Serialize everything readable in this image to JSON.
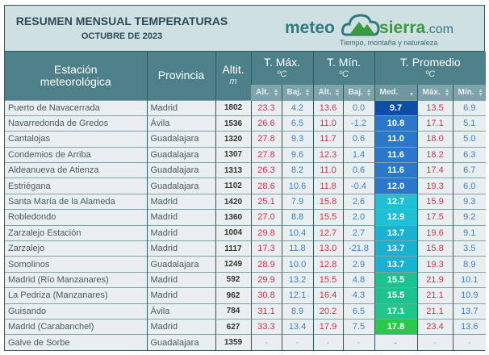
{
  "header": {
    "title": "RESUMEN MENSUAL TEMPERATURAS",
    "subtitle": "OCTUBRE DE 2023"
  },
  "logo": {
    "left": "meteo",
    "right": "sierra",
    "tld": ".com",
    "tagline": "Tiempo, montaña y naturaleza"
  },
  "columns": {
    "station": "Estación meteorológica",
    "province": "Provincia",
    "altitude": "Altit.",
    "altitude_unit": "m",
    "tmax": "T. Máx.",
    "tmin": "T. Mín.",
    "tavg": "T. Promedio",
    "unit": "ºC",
    "sub": [
      "Alt.",
      "Baj.",
      "Alt.",
      "Baj.",
      "Med.",
      "Máx.",
      "Mín."
    ],
    "sorted_column": "Med."
  },
  "colors": {
    "header": "#4e8089",
    "max_text": "#d5304a",
    "min_text": "#3b7fd1"
  },
  "rows": [
    [
      "Puerto de Navacerrada",
      "Madrid",
      "1802",
      "23.3",
      "4.2",
      "13.6",
      "0.0",
      "9.7",
      "13.5",
      "6.9",
      "#0d4fa6"
    ],
    [
      "Navarredonda de Gredos",
      "Ávila",
      "1536",
      "26.6",
      "6.5",
      "11.0",
      "-1.2",
      "10.8",
      "17.1",
      "5.1",
      "#2a78cc"
    ],
    [
      "Cantalojas",
      "Guadalajara",
      "1320",
      "27.8",
      "9.3",
      "11.7",
      "0.6",
      "11.0",
      "18.0",
      "5.0",
      "#2a78cc"
    ],
    [
      "Condemios de Arriba",
      "Guadalajara",
      "1307",
      "27.8",
      "9.6",
      "12.3",
      "1.4",
      "11.6",
      "18.2",
      "6.3",
      "#2a78cc"
    ],
    [
      "Aldeanueva de Atienza",
      "Guadalajara",
      "1313",
      "26.3",
      "8.2",
      "11.0",
      "0.6",
      "11.6",
      "17.4",
      "6.7",
      "#2a78cc"
    ],
    [
      "Estriégana",
      "Guadalajara",
      "1102",
      "28.6",
      "10.6",
      "11.8",
      "-0.4",
      "12.0",
      "19.3",
      "6.0",
      "#2a78cc"
    ],
    [
      "Santa María de la Alameda",
      "Madrid",
      "1420",
      "25.1",
      "7.9",
      "15.8",
      "2.6",
      "12.7",
      "15.9",
      "9.3",
      "#1fbfd6"
    ],
    [
      "Robledondo",
      "Madrid",
      "1360",
      "27.0",
      "8.8",
      "15.5",
      "2.0",
      "12.9",
      "17.5",
      "9.2",
      "#1fbfd6"
    ],
    [
      "Zarzalejo Estación",
      "Madrid",
      "1004",
      "29.8",
      "10.4",
      "12.7",
      "2.7",
      "13.7",
      "19.6",
      "9.1",
      "#1ab2d0"
    ],
    [
      "Zarzalejo",
      "Madrid",
      "1117",
      "17.3",
      "11.8",
      "13.0",
      "-21.8",
      "13.7",
      "15.8",
      "3.5",
      "#1ab2d0"
    ],
    [
      "Somolinos",
      "Guadalajara",
      "1249",
      "28.9",
      "10.0",
      "12.8",
      "2.9",
      "13.7",
      "19.3",
      "8.9",
      "#1ab2d0"
    ],
    [
      "Madrid (Río Manzanares)",
      "Madrid",
      "592",
      "29.9",
      "13.2",
      "15.5",
      "4.8",
      "15.5",
      "21.9",
      "10.1",
      "#1ec28e"
    ],
    [
      "La Pedriza (Manzanares)",
      "Madrid",
      "962",
      "30.8",
      "12.1",
      "16.4",
      "4.3",
      "15.5",
      "21.1",
      "10.9",
      "#1ec28e"
    ],
    [
      "Guisando",
      "Ávila",
      "784",
      "31.1",
      "8.9",
      "20.2",
      "6.5",
      "17.1",
      "21.1",
      "13.7",
      "#22c58a"
    ],
    [
      "Madrid (Carabanchel)",
      "Madrid",
      "627",
      "33.3",
      "13.4",
      "17.9",
      "7.5",
      "17.8",
      "23.4",
      "13.6",
      "#2ac94a"
    ],
    [
      "Galve de Sorbe",
      "Guadalajara",
      "1359",
      "-",
      "-",
      "-",
      "-",
      "-",
      "-",
      "-",
      ""
    ]
  ]
}
